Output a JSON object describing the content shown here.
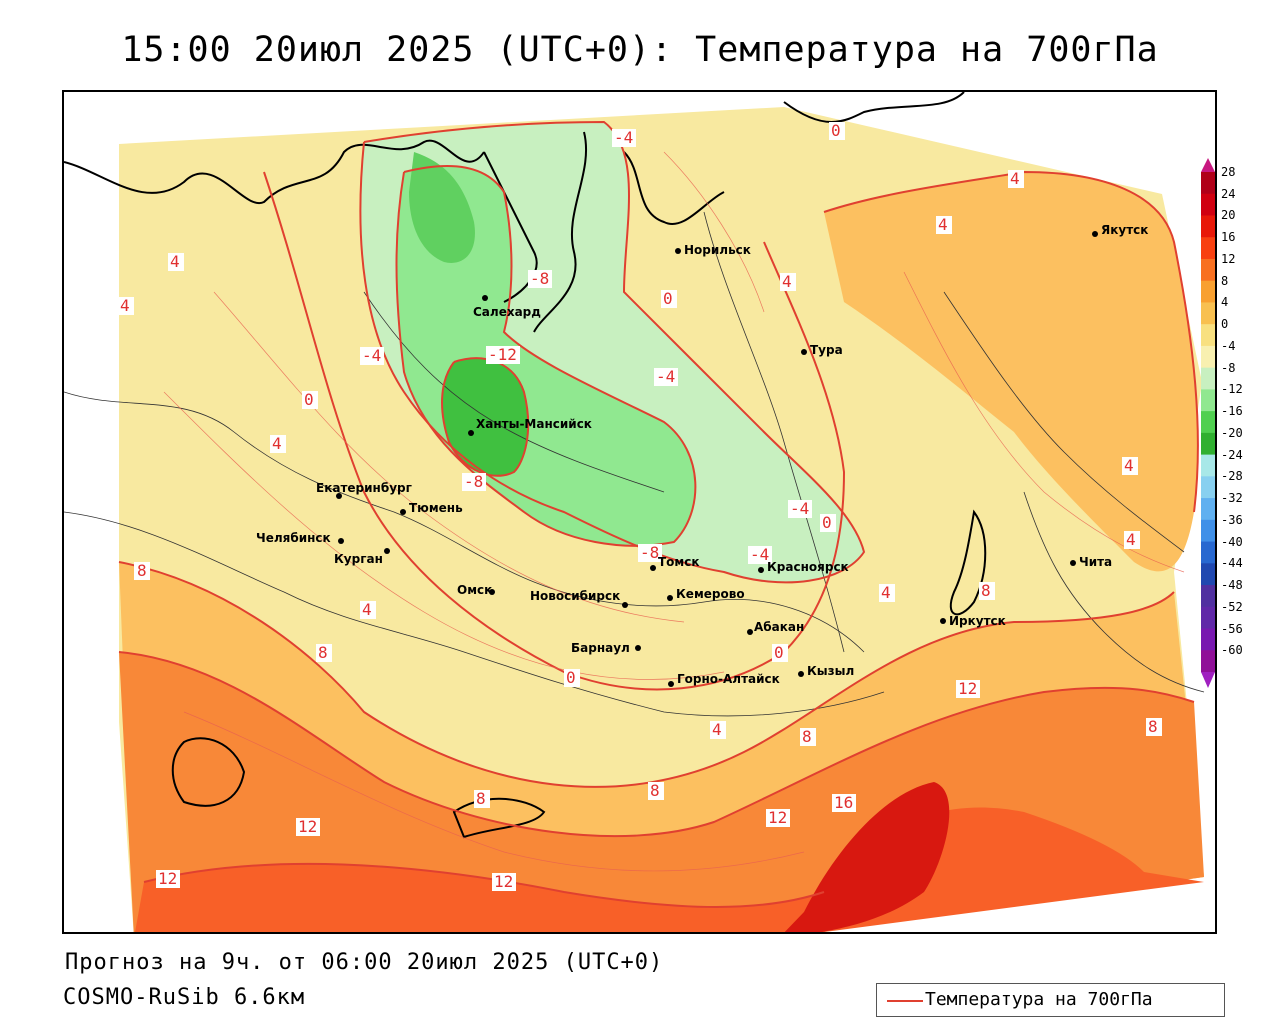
{
  "title": "15:00 20июл 2025 (UTC+0): Температура на 700гПа",
  "footer": {
    "forecast": "Прогноз на 9ч. от 06:00 20июл 2025 (UTC+0)",
    "model": "COSMO-RuSib 6.6км"
  },
  "legend": {
    "label": "Температура на 700гПа",
    "line_color": "#e04030"
  },
  "colorbar": {
    "ticks": [
      "28",
      "24",
      "20",
      "16",
      "12",
      "8",
      "4",
      "0",
      "-4",
      "-8",
      "-12",
      "-16",
      "-20",
      "-24",
      "-28",
      "-32",
      "-36",
      "-40",
      "-44",
      "-48",
      "-52",
      "-56",
      "-60"
    ],
    "colors": [
      "#b00018",
      "#d00010",
      "#e81808",
      "#f84010",
      "#f87020",
      "#f8a030",
      "#f8c050",
      "#f8e080",
      "#f8f0b0",
      "#c8f0c0",
      "#90e890",
      "#50d050",
      "#30b030",
      "#a8e8e8",
      "#88d0f0",
      "#60b0f0",
      "#4090e8",
      "#2868d0",
      "#2048b0",
      "#5030a0",
      "#6028a8",
      "#7818b0",
      "#901098"
    ]
  },
  "cities": [
    {
      "name": "Салехард"
    },
    {
      "name": "Ханты-Мансийск"
    },
    {
      "name": "Норильск"
    },
    {
      "name": "Тура"
    },
    {
      "name": "Якутск"
    },
    {
      "name": "Екатеринбург"
    },
    {
      "name": "Тюмень"
    },
    {
      "name": "Челябинск"
    },
    {
      "name": "Курган"
    },
    {
      "name": "Омск"
    },
    {
      "name": "Новосибирск"
    },
    {
      "name": "Томск"
    },
    {
      "name": "Кемерово"
    },
    {
      "name": "Красноярск"
    },
    {
      "name": "Абакан"
    },
    {
      "name": "Барнаул"
    },
    {
      "name": "Горно-Алтайск"
    },
    {
      "name": "Кызыл"
    },
    {
      "name": "Иркутск"
    },
    {
      "name": "Чита"
    }
  ],
  "isolines": [
    "8",
    "-8",
    "-4",
    "0",
    "4",
    "4",
    "4",
    "4",
    "-12",
    "-4",
    "0",
    "4",
    "4",
    "4",
    "0",
    "-8",
    "-4",
    "-4",
    "0",
    "4",
    "8",
    "8",
    "4",
    "4",
    "-8",
    "-4",
    "0",
    "0",
    "12",
    "8",
    "8",
    "8",
    "8",
    "4",
    "12",
    "12",
    "16",
    "12",
    "12"
  ]
}
